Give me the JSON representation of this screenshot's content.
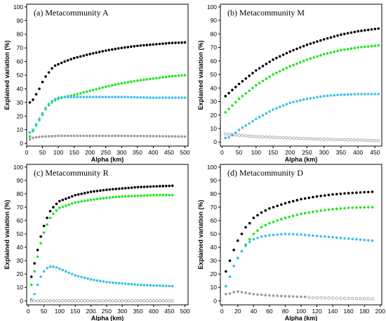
{
  "colors": {
    "black": "#000000",
    "green": "#1fe61f",
    "cyan": "#3cbfe8",
    "gray": "#999999"
  },
  "chart_data": [
    {
      "type": "scatter",
      "title": "(a)  Metacommunity A",
      "xlabel": "Alpha (km)",
      "ylabel": "Explained variation (%)",
      "xlim": [
        0,
        510
      ],
      "ylim": [
        -2,
        102
      ],
      "xticks": [
        0,
        50,
        100,
        150,
        200,
        250,
        300,
        350,
        400,
        450,
        500
      ],
      "yticks": [
        0,
        10,
        20,
        30,
        40,
        50,
        60,
        70,
        80,
        90,
        100
      ],
      "x": {
        "start": 10,
        "step": 10,
        "count": 50
      },
      "series": [
        {
          "color": "black",
          "hollow": false,
          "knots": [
            [
              10,
              30
            ],
            [
              20,
              32
            ],
            [
              30,
              36
            ],
            [
              40,
              40
            ],
            [
              50,
              45
            ],
            [
              60,
              49
            ],
            [
              70,
              52
            ],
            [
              80,
              55
            ],
            [
              90,
              57
            ],
            [
              100,
              58
            ],
            [
              120,
              60
            ],
            [
              150,
              62.5
            ],
            [
              200,
              65.5
            ],
            [
              250,
              68
            ],
            [
              300,
              70
            ],
            [
              350,
              71.5
            ],
            [
              400,
              72.5
            ],
            [
              450,
              73.5
            ],
            [
              500,
              74
            ]
          ]
        },
        {
          "color": "green",
          "hollow": false,
          "knots": [
            [
              10,
              5
            ],
            [
              20,
              9
            ],
            [
              30,
              13
            ],
            [
              40,
              17
            ],
            [
              50,
              21
            ],
            [
              60,
              25
            ],
            [
              70,
              28
            ],
            [
              80,
              30
            ],
            [
              90,
              31.5
            ],
            [
              100,
              32.5
            ],
            [
              120,
              34
            ],
            [
              150,
              35.5
            ],
            [
              200,
              38.5
            ],
            [
              250,
              41.5
            ],
            [
              300,
              44
            ],
            [
              350,
              46
            ],
            [
              400,
              47.5
            ],
            [
              450,
              49
            ],
            [
              500,
              50
            ]
          ]
        },
        {
          "color": "cyan",
          "hollow": false,
          "knots": [
            [
              10,
              8
            ],
            [
              20,
              10
            ],
            [
              30,
              14
            ],
            [
              40,
              18
            ],
            [
              50,
              22
            ],
            [
              60,
              26
            ],
            [
              70,
              29
            ],
            [
              80,
              31
            ],
            [
              90,
              32.5
            ],
            [
              100,
              33.5
            ],
            [
              120,
              34
            ],
            [
              150,
              34
            ],
            [
              200,
              34
            ],
            [
              300,
              34
            ],
            [
              400,
              33.5
            ],
            [
              500,
              33.5
            ]
          ]
        },
        {
          "color": "gray",
          "hollow": false,
          "knots": [
            [
              10,
              3
            ],
            [
              20,
              4
            ],
            [
              30,
              4.5
            ],
            [
              50,
              5
            ],
            [
              100,
              5.5
            ],
            [
              200,
              5.5
            ],
            [
              300,
              5.5
            ],
            [
              400,
              5.3
            ],
            [
              500,
              5
            ]
          ]
        }
      ]
    },
    {
      "type": "scatter",
      "title": "(b)  Metacommunity M",
      "xlabel": "Alpha (km)",
      "ylabel": "Explained variation (%)",
      "xlim": [
        -5,
        470
      ],
      "ylim": [
        -3,
        102
      ],
      "xticks": [
        0,
        50,
        100,
        150,
        200,
        250,
        300,
        350,
        400,
        450
      ],
      "yticks": [
        0,
        10,
        20,
        30,
        40,
        50,
        60,
        70,
        80,
        90,
        100
      ],
      "x": {
        "start": 10,
        "step": 10,
        "count": 46
      },
      "series": [
        {
          "color": "black",
          "hollow": false,
          "knots": [
            [
              10,
              34
            ],
            [
              50,
              43
            ],
            [
              100,
              53
            ],
            [
              150,
              61
            ],
            [
              200,
              67
            ],
            [
              250,
              72
            ],
            [
              300,
              76
            ],
            [
              350,
              79.5
            ],
            [
              400,
              82
            ],
            [
              460,
              84
            ]
          ]
        },
        {
          "color": "green",
          "hollow": false,
          "knots": [
            [
              10,
              22
            ],
            [
              50,
              32
            ],
            [
              100,
              42
            ],
            [
              150,
              50
            ],
            [
              200,
              56
            ],
            [
              250,
              61
            ],
            [
              300,
              65
            ],
            [
              350,
              68
            ],
            [
              400,
              70
            ],
            [
              460,
              71.5
            ]
          ]
        },
        {
          "color": "cyan",
          "hollow": false,
          "knots": [
            [
              10,
              3
            ],
            [
              20,
              3.5
            ],
            [
              30,
              5
            ],
            [
              50,
              9
            ],
            [
              100,
              17
            ],
            [
              150,
              24
            ],
            [
              200,
              29
            ],
            [
              250,
              32
            ],
            [
              300,
              34
            ],
            [
              350,
              35
            ],
            [
              400,
              35.5
            ],
            [
              460,
              35.5
            ]
          ]
        },
        {
          "color": "gray",
          "hollow": true,
          "knots": [
            [
              10,
              6
            ],
            [
              50,
              5
            ],
            [
              100,
              4
            ],
            [
              150,
              3.5
            ],
            [
              200,
              3
            ],
            [
              300,
              2
            ],
            [
              400,
              1.5
            ],
            [
              460,
              1
            ]
          ]
        }
      ]
    },
    {
      "type": "scatter",
      "title": "(c)  Metacommunity R",
      "xlabel": "Alpha (km)",
      "ylabel": "Explained variation (%)",
      "xlim": [
        -5,
        510
      ],
      "ylim": [
        -3,
        102
      ],
      "xticks": [
        0,
        50,
        100,
        150,
        200,
        250,
        300,
        350,
        400,
        450,
        500
      ],
      "yticks": [
        0,
        10,
        20,
        30,
        40,
        50,
        60,
        70,
        80,
        90,
        100
      ],
      "x": {
        "start": 10,
        "step": 10,
        "count": 46
      },
      "series": [
        {
          "color": "black",
          "hollow": false,
          "knots": [
            [
              10,
              18
            ],
            [
              20,
              28
            ],
            [
              30,
              38
            ],
            [
              40,
              48
            ],
            [
              50,
              56
            ],
            [
              60,
              62
            ],
            [
              70,
              67
            ],
            [
              80,
              70
            ],
            [
              90,
              72.5
            ],
            [
              100,
              74.5
            ],
            [
              150,
              79
            ],
            [
              200,
              81.5
            ],
            [
              250,
              83
            ],
            [
              300,
              84
            ],
            [
              350,
              85
            ],
            [
              400,
              85.5
            ],
            [
              460,
              86
            ]
          ]
        },
        {
          "color": "green",
          "hollow": false,
          "knots": [
            [
              10,
              12
            ],
            [
              20,
              22
            ],
            [
              30,
              33
            ],
            [
              40,
              43
            ],
            [
              50,
              51
            ],
            [
              60,
              57
            ],
            [
              70,
              62
            ],
            [
              80,
              65
            ],
            [
              90,
              67.5
            ],
            [
              100,
              69.5
            ],
            [
              150,
              73.5
            ],
            [
              200,
              75.5
            ],
            [
              250,
              77
            ],
            [
              300,
              78
            ],
            [
              350,
              78.5
            ],
            [
              400,
              79
            ],
            [
              460,
              79
            ]
          ]
        },
        {
          "color": "cyan",
          "hollow": false,
          "knots": [
            [
              10,
              1
            ],
            [
              20,
              5
            ],
            [
              30,
              12
            ],
            [
              40,
              18
            ],
            [
              50,
              22
            ],
            [
              60,
              24.5
            ],
            [
              70,
              25.5
            ],
            [
              80,
              25.5
            ],
            [
              90,
              25
            ],
            [
              100,
              24
            ],
            [
              150,
              19
            ],
            [
              200,
              16
            ],
            [
              250,
              14
            ],
            [
              300,
              13
            ],
            [
              350,
              12
            ],
            [
              400,
              11.5
            ],
            [
              460,
              11
            ]
          ]
        },
        {
          "color": "gray",
          "hollow": true,
          "knots": [
            [
              10,
              0
            ],
            [
              460,
              0
            ]
          ]
        }
      ]
    },
    {
      "type": "scatter",
      "title": "(d)  Metacommunity D",
      "xlabel": "Alpha (km)",
      "ylabel": "Explained variation (%)",
      "xlim": [
        -2,
        202
      ],
      "ylim": [
        -3,
        102
      ],
      "xticks": [
        0,
        20,
        40,
        60,
        80,
        100,
        120,
        140,
        160,
        180,
        200
      ],
      "yticks": [
        0,
        10,
        20,
        30,
        40,
        50,
        60,
        70,
        80,
        90,
        100
      ],
      "x": {
        "start": 5,
        "step": 5,
        "count": 38
      },
      "series": [
        {
          "color": "black",
          "hollow": false,
          "knots": [
            [
              5,
              22
            ],
            [
              10,
              30
            ],
            [
              15,
              38
            ],
            [
              20,
              45
            ],
            [
              25,
              50
            ],
            [
              30,
              55
            ],
            [
              35,
              58
            ],
            [
              40,
              62
            ],
            [
              50,
              66
            ],
            [
              60,
              69
            ],
            [
              80,
              73
            ],
            [
              100,
              76
            ],
            [
              120,
              78
            ],
            [
              140,
              79.5
            ],
            [
              160,
              80.5
            ],
            [
              190,
              81.5
            ]
          ]
        },
        {
          "color": "green",
          "hollow": false,
          "knots": [
            [
              5,
              11
            ],
            [
              10,
              18
            ],
            [
              15,
              26
            ],
            [
              20,
              32
            ],
            [
              25,
              37
            ],
            [
              30,
              42
            ],
            [
              35,
              46
            ],
            [
              40,
              50
            ],
            [
              50,
              55
            ],
            [
              60,
              58
            ],
            [
              80,
              62
            ],
            [
              100,
              65
            ],
            [
              120,
              67
            ],
            [
              140,
              68.5
            ],
            [
              160,
              69.5
            ],
            [
              190,
              70
            ]
          ]
        },
        {
          "color": "cyan",
          "hollow": false,
          "knots": [
            [
              5,
              11
            ],
            [
              10,
              18
            ],
            [
              15,
              26
            ],
            [
              20,
              32
            ],
            [
              25,
              37
            ],
            [
              30,
              41
            ],
            [
              35,
              44
            ],
            [
              40,
              46
            ],
            [
              50,
              48
            ],
            [
              60,
              49
            ],
            [
              80,
              50
            ],
            [
              100,
              49.5
            ],
            [
              120,
              48.5
            ],
            [
              140,
              47.5
            ],
            [
              160,
              46.5
            ],
            [
              190,
              45
            ]
          ]
        },
        {
          "color": "gray",
          "hollow": false,
          "knots": [
            [
              5,
              5
            ],
            [
              10,
              5.5
            ],
            [
              15,
              6.5
            ],
            [
              20,
              7
            ],
            [
              25,
              6.5
            ],
            [
              30,
              6
            ],
            [
              40,
              5
            ],
            [
              60,
              4
            ],
            [
              80,
              3.5
            ],
            [
              100,
              3
            ],
            [
              105,
              3
            ]
          ]
        },
        {
          "color": "gray",
          "hollow": true,
          "knots": [
            [
              110,
              2.5
            ],
            [
              140,
              2
            ],
            [
              190,
              1.5
            ]
          ]
        }
      ]
    }
  ]
}
